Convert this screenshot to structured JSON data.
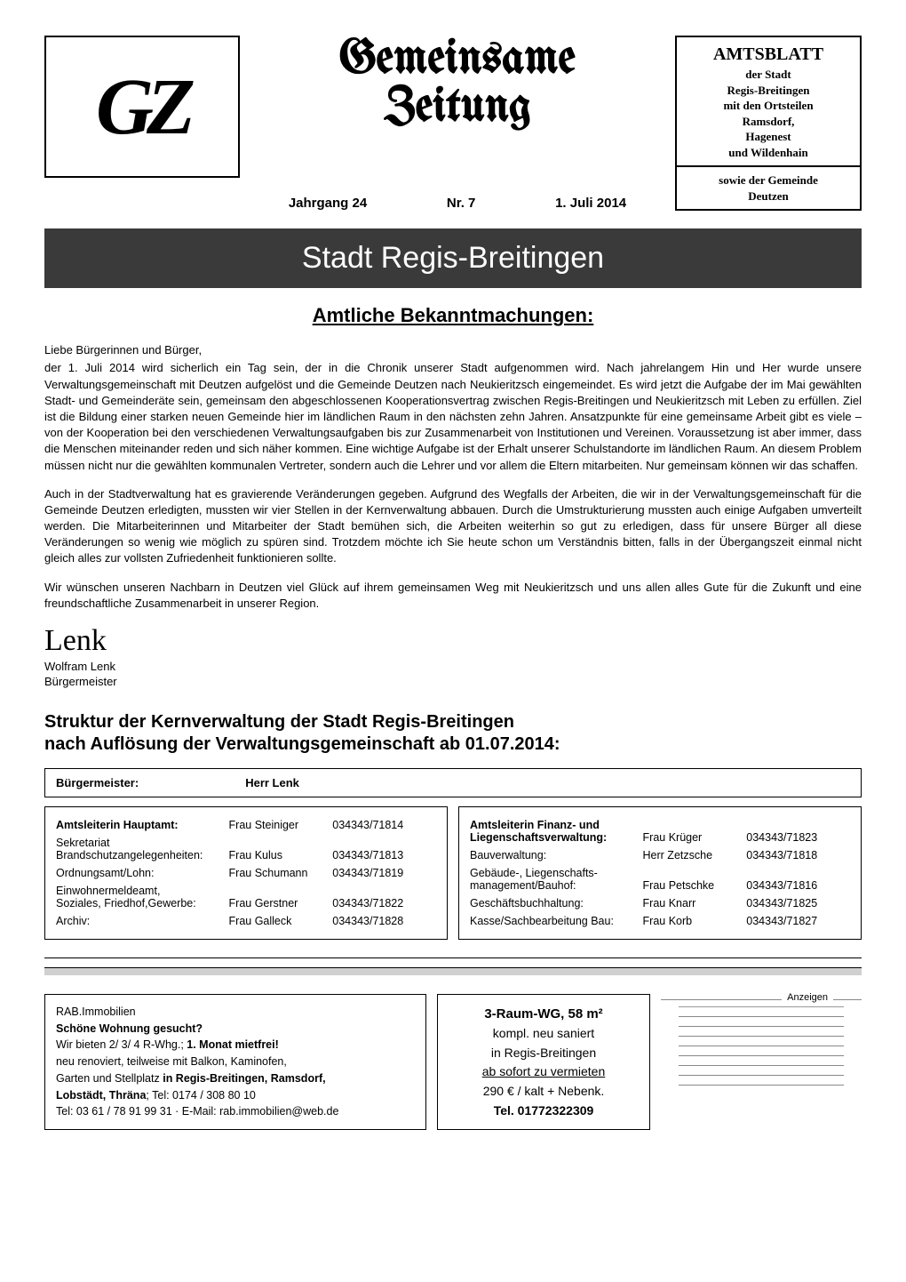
{
  "header": {
    "logo_text": "GZ",
    "main_title_line1": "Gemeinsame",
    "main_title_line2": "Zeitung",
    "jahrgang": "Jahrgang 24",
    "nr": "Nr. 7",
    "date": "1. Juli 2014",
    "amtsblatt_title": "AMTSBLATT",
    "amtsblatt_body": "der Stadt\nRegis-Breitingen\nmit den Ortsteilen\nRamsdorf,\nHagenest\nund Wildenhain",
    "amtsblatt_lower": "sowie der Gemeinde\nDeutzen"
  },
  "banner": "Stadt Regis-Breitingen",
  "section_title": "Amtliche Bekanntmachungen:",
  "salutation": "Liebe Bürgerinnen und Bürger,",
  "para1": "der 1. Juli 2014 wird sicherlich ein Tag sein, der in die Chronik unserer Stadt aufgenommen wird. Nach jahrelangem Hin und Her wurde unsere Verwaltungsgemeinschaft mit Deutzen aufgelöst und die Gemeinde Deutzen nach Neukieritzsch eingemeindet. Es wird jetzt die Aufgabe der im Mai gewählten Stadt- und Gemeinderäte sein, gemeinsam den abgeschlossenen Kooperationsvertrag zwischen Regis-Breitingen und Neukieritzsch mit Leben zu erfüllen. Ziel ist die Bildung einer starken neuen Gemeinde hier im ländlichen Raum in den nächsten zehn Jahren. Ansatzpunkte für eine gemeinsame Arbeit gibt es viele – von der Kooperation bei den verschiedenen Verwaltungsaufgaben bis zur Zusammenarbeit von Institutionen und Vereinen. Voraussetzung ist aber immer, dass die Menschen miteinander reden und sich näher kommen. Eine wichtige Aufgabe ist der Erhalt unserer Schulstandorte im ländlichen Raum. An diesem Problem müssen nicht nur die gewählten kommunalen Vertreter, sondern auch die Lehrer und vor allem die Eltern mitarbeiten. Nur gemeinsam können wir das schaffen.",
  "para2": "Auch in der Stadtverwaltung hat es gravierende Veränderungen gegeben. Aufgrund des Wegfalls der Arbeiten, die wir in der Verwaltungsgemeinschaft für die Gemeinde Deutzen erledigten, mussten wir vier Stellen in der Kernverwaltung abbauen. Durch die Umstrukturierung mussten auch einige Aufgaben umverteilt werden. Die Mitarbeiterinnen und Mitarbeiter der Stadt bemühen sich, die Arbeiten weiterhin so gut zu erledigen, dass für unsere Bürger all diese Veränderungen so wenig wie möglich zu spüren sind. Trotzdem möchte ich Sie heute schon um Verständnis bitten, falls in der Übergangszeit einmal nicht gleich alles zur vollsten Zufriedenheit funktionieren sollte.",
  "para3": "Wir wünschen unseren Nachbarn in Deutzen viel Glück auf ihrem gemeinsamen Weg mit Neukieritzsch und uns allen alles Gute für die Zukunft und eine freundschaftliche Zusammenarbeit in unserer Region.",
  "signature": "Lenk",
  "sig_name": "Wolfram Lenk",
  "sig_role": "Bürgermeister",
  "struct_heading_l1": "Struktur der Kernverwaltung der Stadt Regis-Breitingen",
  "struct_heading_l2": "nach Auflösung der Verwaltungsgemeinschaft ab 01.07.2014:",
  "buergermeister_label": "Bürgermeister:",
  "buergermeister_name": "Herr Lenk",
  "left_rows": [
    {
      "label": "Amtsleiterin Hauptamt:",
      "bold": true,
      "name": "Frau Steiniger",
      "phone": "034343/71814"
    },
    {
      "label": "Sekretariat\nBrandschutzangelegenheiten:",
      "bold": false,
      "name": "Frau Kulus",
      "phone": "034343/71813"
    },
    {
      "label": "Ordnungsamt/Lohn:",
      "bold": false,
      "name": "Frau Schumann",
      "phone": "034343/71819"
    },
    {
      "label": "Einwohnermeldeamt,\nSoziales, Friedhof,Gewerbe:",
      "bold": false,
      "name": "Frau Gerstner",
      "phone": "034343/71822"
    },
    {
      "label": "Archiv:",
      "bold": false,
      "name": "Frau Galleck",
      "phone": "034343/71828"
    }
  ],
  "right_rows": [
    {
      "label": "Amtsleiterin Finanz- und\nLiegenschaftsverwaltung:",
      "bold": true,
      "name": "Frau Krüger",
      "phone": "034343/71823"
    },
    {
      "label": "Bauverwaltung:",
      "bold": false,
      "name": "Herr Zetzsche",
      "phone": "034343/71818"
    },
    {
      "label": "Gebäude-, Liegenschafts-\nmanagement/Bauhof:",
      "bold": false,
      "name": "Frau Petschke",
      "phone": "034343/71816"
    },
    {
      "label": "Geschäftsbuchhaltung:",
      "bold": false,
      "name": "Frau Knarr",
      "phone": "034343/71825"
    },
    {
      "label": "Kasse/Sachbearbeitung Bau:",
      "bold": false,
      "name": "Frau Korb",
      "phone": "034343/71827"
    }
  ],
  "ad1": {
    "l1": "RAB.Immobilien",
    "l2": "Schöne Wohnung gesucht?",
    "l3a": "Wir bieten 2/ 3/ 4 R-Whg.; ",
    "l3b": "1. Monat mietfrei!",
    "l4": "neu renoviert, teilweise mit Balkon, Kaminofen,",
    "l5a": "Garten und Stellplatz ",
    "l5b": "in Regis-Breitingen, Ramsdorf,",
    "l6a": "Lobstädt, Thräna",
    "l6b": "; Tel: 0174 / 308 80 10",
    "l7": "Tel: 03 61 / 78 91 99 31 · E-Mail: rab.immobilien@web.de"
  },
  "ad2": {
    "l1": "3-Raum-WG, 58 m²",
    "l2": "kompl. neu saniert",
    "l3": "in Regis-Breitingen",
    "l4": "ab sofort zu vermieten",
    "l5": "290 € / kalt + Nebenk.",
    "l6": "Tel. 01772322309"
  },
  "anzeigen_label": "Anzeigen",
  "anzeigen_line_count": 8,
  "colors": {
    "banner_bg": "#3a3a3a",
    "divider_bg": "#d0d0d0"
  }
}
